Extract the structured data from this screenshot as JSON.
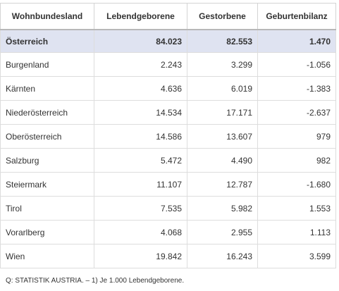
{
  "table": {
    "headers": [
      "Wohnbundesland",
      "Lebendgeborene",
      "Gestorbene",
      "Geburtenbilanz"
    ],
    "rows": [
      {
        "name": "Österreich",
        "born": "84.023",
        "died": "82.553",
        "balance": "1.470",
        "highlight": true
      },
      {
        "name": "Burgenland",
        "born": "2.243",
        "died": "3.299",
        "balance": "-1.056"
      },
      {
        "name": "Kärnten",
        "born": "4.636",
        "died": "6.019",
        "balance": "-1.383"
      },
      {
        "name": "Niederösterreich",
        "born": "14.534",
        "died": "17.171",
        "balance": "-2.637"
      },
      {
        "name": "Oberösterreich",
        "born": "14.586",
        "died": "13.607",
        "balance": "979"
      },
      {
        "name": "Salzburg",
        "born": "5.472",
        "died": "4.490",
        "balance": "982"
      },
      {
        "name": "Steiermark",
        "born": "11.107",
        "died": "12.787",
        "balance": "-1.680"
      },
      {
        "name": "Tirol",
        "born": "7.535",
        "died": "5.982",
        "balance": "1.553"
      },
      {
        "name": "Vorarlberg",
        "born": "4.068",
        "died": "2.955",
        "balance": "1.113"
      },
      {
        "name": "Wien",
        "born": "19.842",
        "died": "16.243",
        "balance": "3.599"
      }
    ]
  },
  "source": "Q: STATISTIK AUSTRIA. – 1) Je 1.000 Lebendgeborene.",
  "colors": {
    "highlight_row": "#dfe3f1",
    "text": "#333333",
    "border": "#dddddd"
  }
}
